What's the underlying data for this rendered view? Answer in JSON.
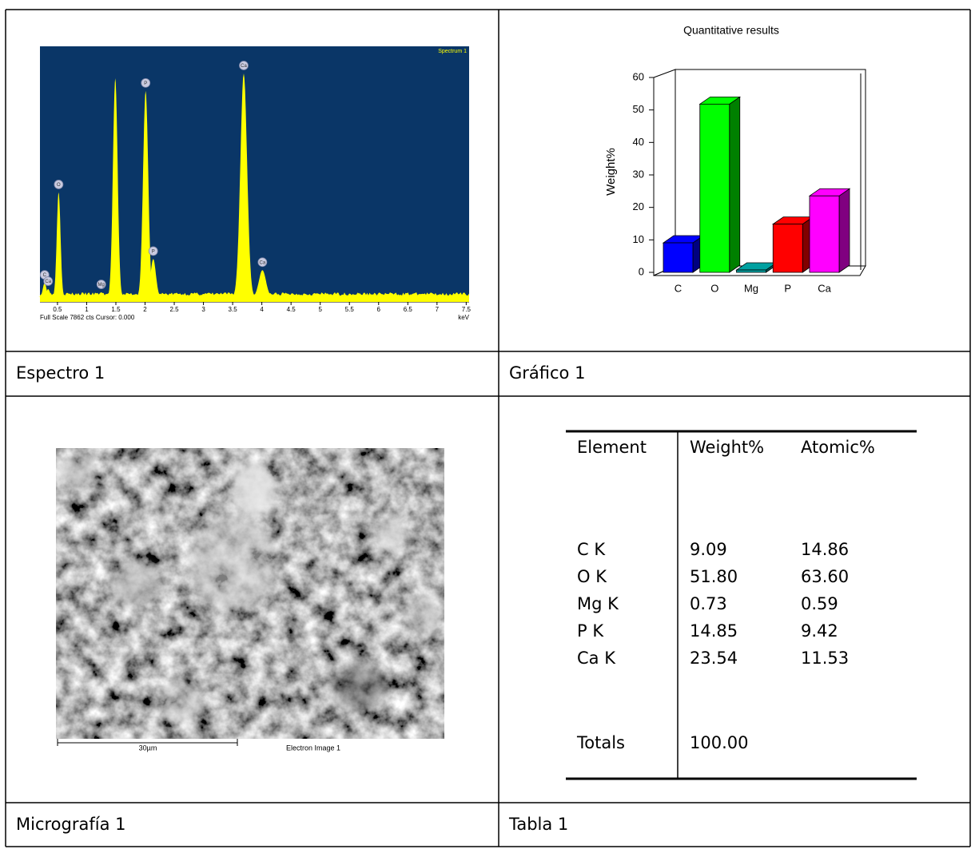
{
  "spectrum": {
    "label": "Spectrum 1",
    "footer": "Full Scale 7862 cts Cursor: 0.000",
    "unit": "keV",
    "xlim": [
      0.2,
      7.55
    ],
    "xticks": [
      0.5,
      1,
      1.5,
      2,
      2.5,
      3,
      3.5,
      4,
      4.5,
      5,
      5.5,
      6,
      6.5,
      7,
      7.5
    ],
    "peaks": [
      {
        "label": "C",
        "x": 0.28,
        "height": 450
      },
      {
        "label": "Ca",
        "x": 0.34,
        "height": 250
      },
      {
        "label": "O",
        "x": 0.52,
        "height": 3300
      },
      {
        "label": "Mg",
        "x": 1.25,
        "height": 150
      },
      {
        "label": null,
        "x": 1.49,
        "height": 6900
      },
      {
        "label": "P",
        "x": 2.01,
        "height": 6500
      },
      {
        "label": "P",
        "x": 2.14,
        "height": 1200
      },
      {
        "label": "Ca",
        "x": 3.69,
        "height": 7050
      },
      {
        "label": "Ca",
        "x": 4.01,
        "height": 850
      }
    ]
  },
  "chart_data": {
    "type": "bar3d",
    "title": "Quantitative results",
    "y_label": "Weight%",
    "categories": [
      "C",
      "O",
      "Mg",
      "P",
      "Ca"
    ],
    "values": [
      9.09,
      51.8,
      0.73,
      14.85,
      23.54
    ],
    "colors": [
      "#0000ff",
      "#00ff00",
      "#00a0a0",
      "#ff0000",
      "#ff00ff"
    ],
    "side_colors": [
      "#000080",
      "#008000",
      "#005858",
      "#800000",
      "#800080"
    ],
    "ylim": [
      0,
      60
    ],
    "yticks": [
      0,
      10,
      20,
      30,
      40,
      50,
      60
    ]
  },
  "micrograph": {
    "scale_bar": "30µm",
    "label": "Electron Image 1"
  },
  "table": {
    "header": [
      "Element",
      "Weight%",
      "Atomic%"
    ],
    "rows": [
      [
        "C K",
        "9.09",
        "14.86"
      ],
      [
        "O K",
        "51.80",
        "63.60"
      ],
      [
        "Mg K",
        "0.73",
        "0.59"
      ],
      [
        "P K",
        "14.85",
        "9.42"
      ],
      [
        "Ca K",
        "23.54",
        "11.53"
      ]
    ],
    "totals": [
      "Totals",
      "100.00"
    ]
  },
  "captions": [
    "Espectro 1",
    "Gráfico 1",
    "Micrografía 1",
    "Tabla 1"
  ]
}
